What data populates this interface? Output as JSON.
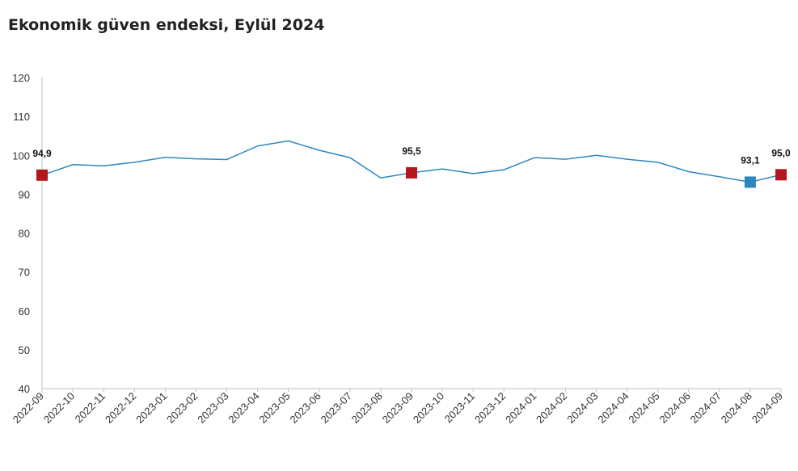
{
  "title": "Ekonomik güven endeksi, Eylül 2024",
  "colors": {
    "line": "#2e86c1",
    "highlight_red": "#b3171c",
    "highlight_blue": "#2e86c1",
    "axis": "#bfbfbf"
  },
  "chart_data": {
    "type": "line",
    "title": "Ekonomik güven endeksi, Eylül 2024",
    "xlabel": "",
    "ylabel": "",
    "ylim": [
      40,
      120
    ],
    "yticks": [
      40,
      50,
      60,
      70,
      80,
      90,
      100,
      110,
      120
    ],
    "grid": false,
    "categories": [
      "2022-09",
      "2022-10",
      "2022-11",
      "2022-12",
      "2023-01",
      "2023-02",
      "2023-03",
      "2023-04",
      "2023-05",
      "2023-06",
      "2023-07",
      "2023-08",
      "2023-09",
      "2023-10",
      "2023-11",
      "2023-12",
      "2024-01",
      "2024-02",
      "2024-03",
      "2024-04",
      "2024-05",
      "2024-06",
      "2024-07",
      "2024-08",
      "2024-09"
    ],
    "series": [
      {
        "values": [
          94.9,
          97.6,
          97.3,
          98.2,
          99.5,
          99.1,
          98.9,
          102.4,
          103.7,
          101.3,
          99.4,
          94.2,
          95.5,
          96.5,
          95.3,
          96.3,
          99.4,
          99.0,
          100.0,
          99.0,
          98.2,
          95.8,
          94.5,
          93.1,
          95.0
        ]
      }
    ],
    "highlights": [
      {
        "index": 0,
        "label": "94,9",
        "color": "red"
      },
      {
        "index": 12,
        "label": "95,5",
        "color": "red"
      },
      {
        "index": 23,
        "label": "93,1",
        "color": "blue"
      },
      {
        "index": 24,
        "label": "95,0",
        "color": "red"
      }
    ]
  }
}
